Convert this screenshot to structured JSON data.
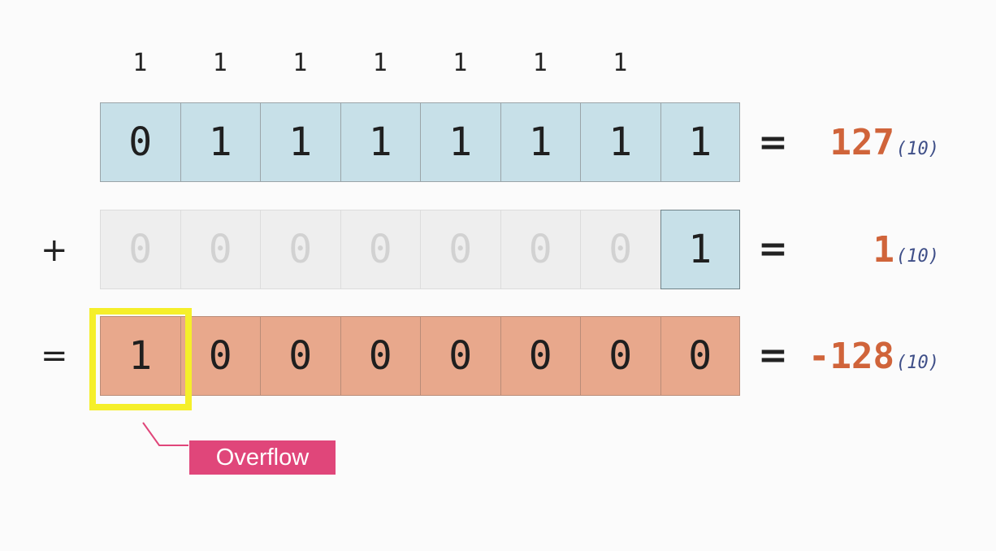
{
  "carry_bits": [
    "1",
    "1",
    "1",
    "1",
    "1",
    "1",
    "1"
  ],
  "row_a": {
    "bits": [
      "0",
      "1",
      "1",
      "1",
      "1",
      "1",
      "1",
      "1"
    ],
    "equals": "=",
    "value": "127",
    "base": "(10)"
  },
  "row_b": {
    "operator": "+",
    "bits": [
      "0",
      "0",
      "0",
      "0",
      "0",
      "0",
      "0",
      "1"
    ],
    "equals": "=",
    "value": "1",
    "base": "(10)"
  },
  "row_c": {
    "operator": "=",
    "bits": [
      "1",
      "0",
      "0",
      "0",
      "0",
      "0",
      "0",
      "0"
    ],
    "equals": "=",
    "value": "-128",
    "base": "(10)"
  },
  "overflow_label": "Overflow",
  "colors": {
    "blue_cell": "#c7e0e8",
    "orange_cell": "#e8a88c",
    "highlight": "#f5ef2a",
    "label_bg": "#e0467a",
    "result_text": "#d0643a"
  }
}
